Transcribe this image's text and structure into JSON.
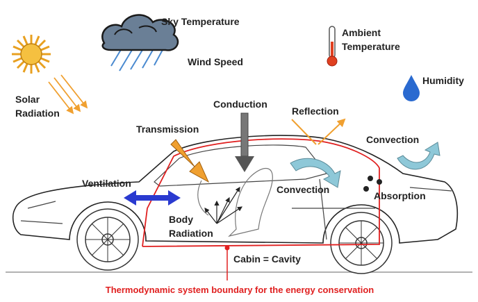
{
  "labels": {
    "sky_temperature": "Sky Temperature",
    "wind_speed": "Wind Speed",
    "ambient_temperature": [
      "Ambient",
      "Temperature"
    ],
    "humidity": "Humidity",
    "solar_radiation": [
      "Solar",
      "Radiation"
    ],
    "conduction": "Conduction",
    "reflection": "Reflection",
    "transmission": "Transmission",
    "convection_outside": "Convection",
    "ventilation": "Ventilation",
    "convection_cabin": "Convection",
    "absorption": "Absorption",
    "body_radiation": [
      "Body",
      "Radiation"
    ],
    "cabin": "Cabin = Cavity",
    "boundary": "Thermodynamic system boundary for the energy conservation"
  }
}
